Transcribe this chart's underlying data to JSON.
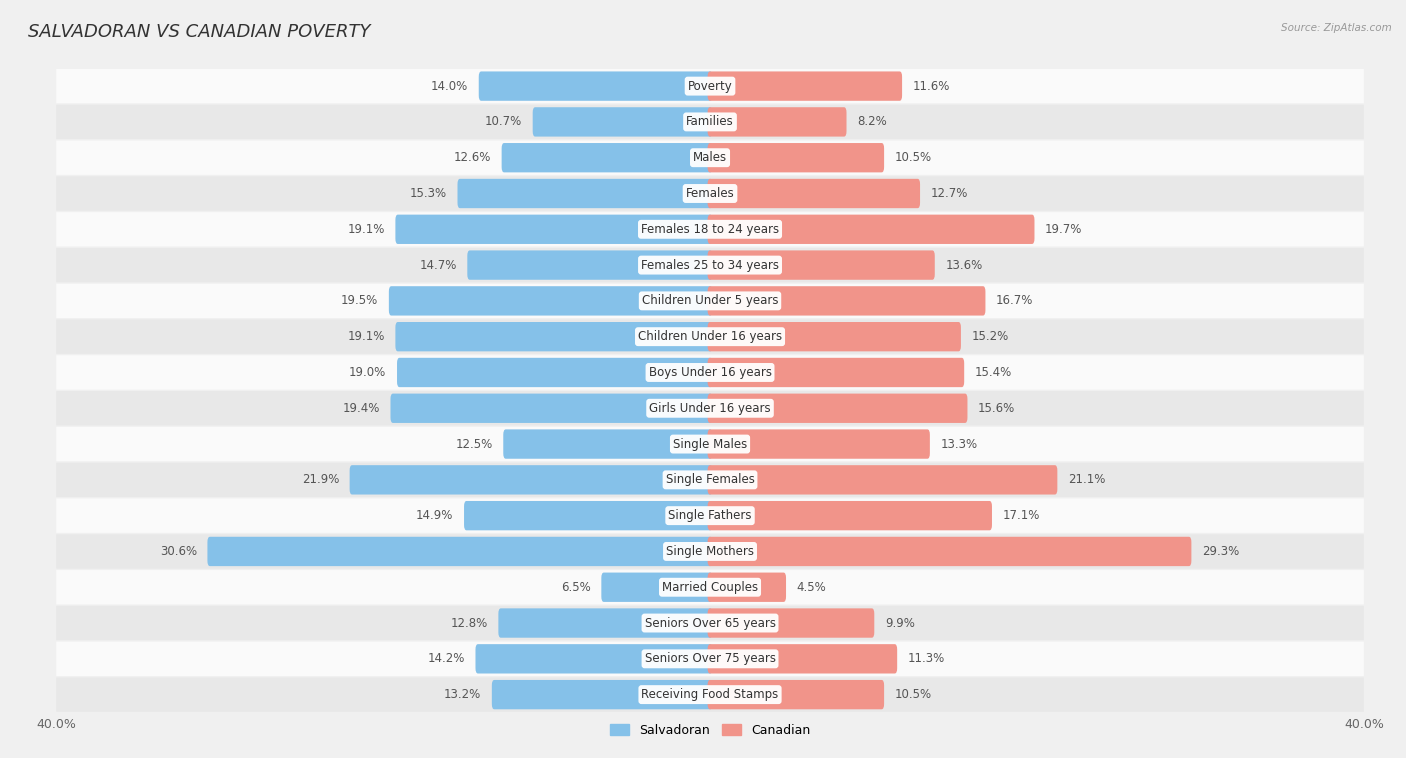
{
  "title": "SALVADORAN VS CANADIAN POVERTY",
  "source": "Source: ZipAtlas.com",
  "categories": [
    "Poverty",
    "Families",
    "Males",
    "Females",
    "Females 18 to 24 years",
    "Females 25 to 34 years",
    "Children Under 5 years",
    "Children Under 16 years",
    "Boys Under 16 years",
    "Girls Under 16 years",
    "Single Males",
    "Single Females",
    "Single Fathers",
    "Single Mothers",
    "Married Couples",
    "Seniors Over 65 years",
    "Seniors Over 75 years",
    "Receiving Food Stamps"
  ],
  "salvadoran": [
    14.0,
    10.7,
    12.6,
    15.3,
    19.1,
    14.7,
    19.5,
    19.1,
    19.0,
    19.4,
    12.5,
    21.9,
    14.9,
    30.6,
    6.5,
    12.8,
    14.2,
    13.2
  ],
  "canadian": [
    11.6,
    8.2,
    10.5,
    12.7,
    19.7,
    13.6,
    16.7,
    15.2,
    15.4,
    15.6,
    13.3,
    21.1,
    17.1,
    29.3,
    4.5,
    9.9,
    11.3,
    10.5
  ],
  "salvadoran_color": "#85c1e9",
  "canadian_color": "#f1948a",
  "background_color": "#f0f0f0",
  "row_color_light": "#fafafa",
  "row_color_dark": "#e8e8e8",
  "xlim": 40.0,
  "bar_height": 0.52,
  "title_fontsize": 13,
  "label_fontsize": 8.5,
  "value_fontsize": 8.5,
  "axis_label_fontsize": 9,
  "legend_fontsize": 9
}
